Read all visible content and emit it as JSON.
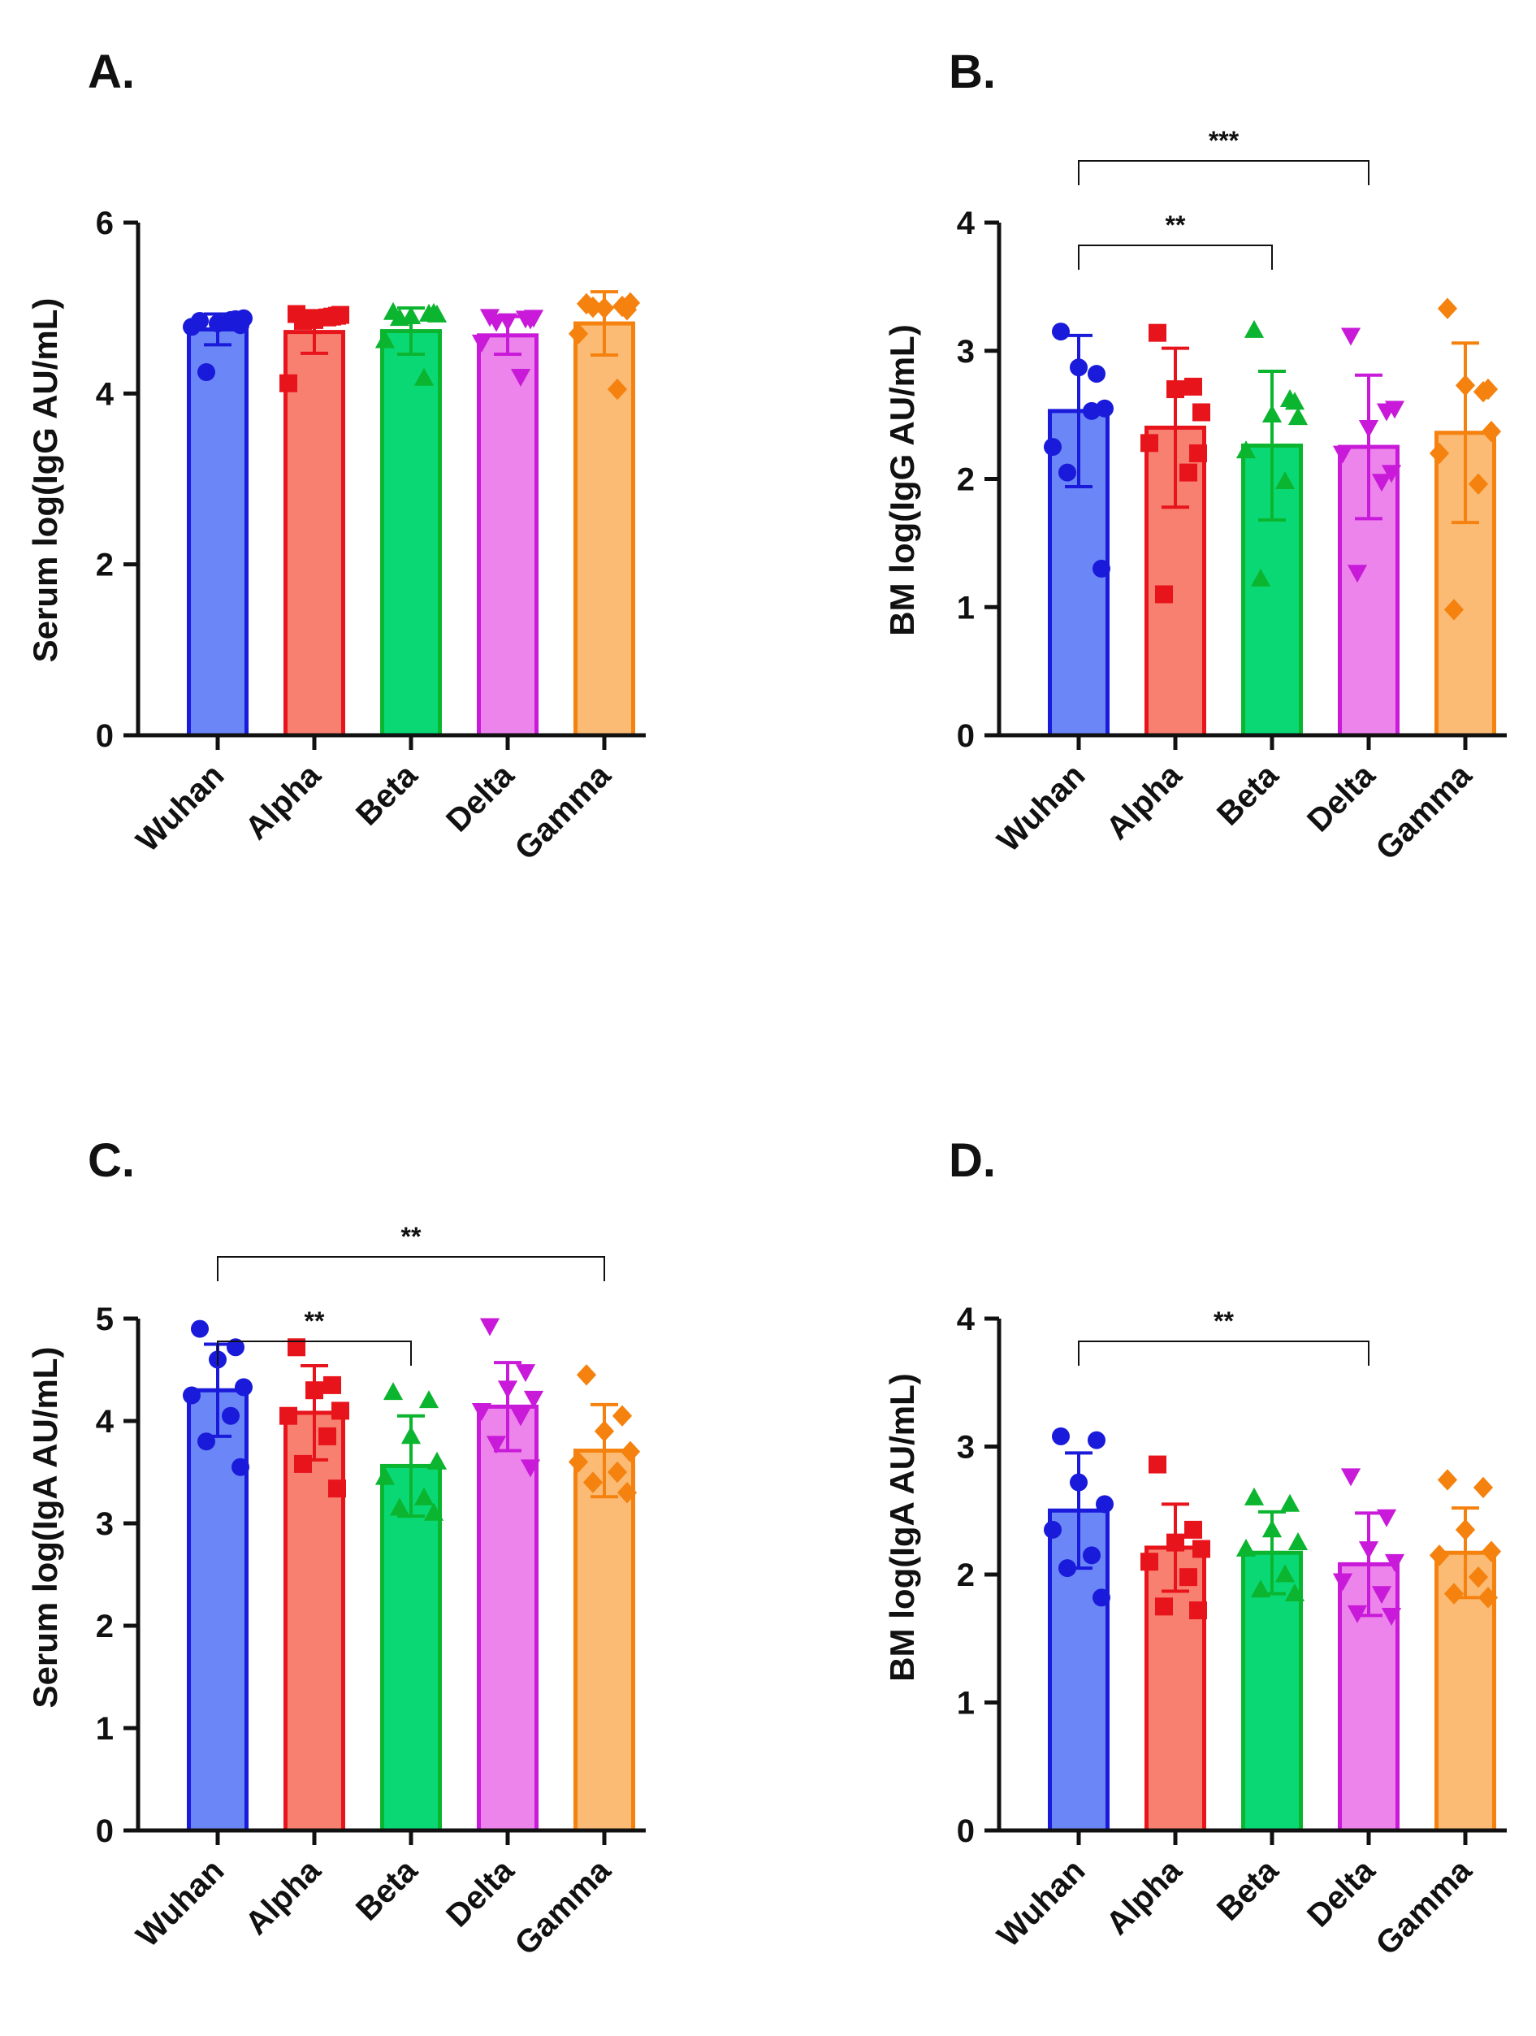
{
  "figure": {
    "title": ""
  },
  "categories": [
    "Wuhan",
    "Alpha",
    "Beta",
    "Delta",
    "Gamma"
  ],
  "colors": {
    "stroke": [
      "#1a1adb",
      "#e8141c",
      "#0bb52f",
      "#c81ad8",
      "#f5820f"
    ],
    "fill": [
      "#6a86f7",
      "#f88070",
      "#0ad874",
      "#ec84ec",
      "#fbbb74"
    ],
    "axis": "#111111"
  },
  "markers": [
    "circle",
    "square",
    "triangle-up",
    "triangle-down",
    "diamond"
  ],
  "chart_data": [
    {
      "id": "A",
      "panel_label": "A.",
      "type": "bar",
      "ylabel": "Serum log(IgG AU/mL)",
      "ylim": [
        0,
        6
      ],
      "yticks": [
        0,
        2,
        4,
        6
      ],
      "ytick_labels": [
        "0",
        "2",
        "4",
        "6"
      ],
      "categories": [
        "Wuhan",
        "Alpha",
        "Beta",
        "Delta",
        "Gamma"
      ],
      "values": [
        4.75,
        4.72,
        4.73,
        4.68,
        4.82
      ],
      "errors": [
        0.18,
        0.25,
        0.27,
        0.22,
        0.37
      ],
      "points": [
        [
          4.85,
          4.87,
          4.82,
          4.88,
          4.78,
          4.86,
          4.25,
          4.8
        ],
        [
          4.93,
          4.9,
          4.86,
          4.92,
          4.12,
          4.89,
          4.85,
          4.91
        ],
        [
          4.95,
          4.93,
          4.9,
          4.92,
          4.62,
          4.18,
          4.88,
          4.94
        ],
        [
          4.9,
          4.88,
          4.85,
          4.89,
          4.6,
          4.2,
          4.84,
          4.87
        ],
        [
          5.05,
          5.02,
          5.0,
          5.06,
          4.7,
          4.05,
          5.01,
          4.98
        ]
      ],
      "significance": []
    },
    {
      "id": "B",
      "panel_label": "B.",
      "type": "bar",
      "ylabel": "BM log(IgG AU/mL)",
      "ylim": [
        0,
        4
      ],
      "yticks": [
        0,
        1,
        2,
        3,
        4
      ],
      "ytick_labels": [
        "0",
        "1",
        "2",
        "3",
        "4"
      ],
      "categories": [
        "Wuhan",
        "Alpha",
        "Beta",
        "Delta",
        "Gamma"
      ],
      "values": [
        2.53,
        2.4,
        2.26,
        2.25,
        2.36
      ],
      "errors": [
        0.59,
        0.62,
        0.58,
        0.56,
        0.7
      ],
      "points": [
        [
          3.15,
          2.82,
          2.87,
          2.55,
          2.25,
          2.53,
          2.05,
          1.3
        ],
        [
          3.14,
          2.72,
          2.7,
          2.52,
          2.28,
          2.05,
          1.1,
          2.2
        ],
        [
          3.16,
          2.62,
          2.5,
          2.48,
          2.22,
          1.98,
          1.22,
          2.6
        ],
        [
          3.12,
          2.53,
          2.4,
          2.55,
          2.2,
          1.98,
          1.27,
          2.05
        ],
        [
          3.33,
          2.68,
          2.73,
          2.37,
          2.2,
          1.96,
          0.98,
          2.7
        ]
      ],
      "significance": [
        {
          "from": 0,
          "to": 2,
          "label": "**"
        },
        {
          "from": 0,
          "to": 3,
          "label": "***"
        }
      ]
    },
    {
      "id": "C",
      "panel_label": "C.",
      "type": "bar",
      "ylabel": "Serum log(IgA AU/mL)",
      "ylim": [
        0,
        5
      ],
      "yticks": [
        0,
        1,
        2,
        3,
        4,
        5
      ],
      "ytick_labels": [
        "0",
        "1",
        "2",
        "3",
        "4",
        "5"
      ],
      "categories": [
        "Wuhan",
        "Alpha",
        "Beta",
        "Delta",
        "Gamma"
      ],
      "values": [
        4.3,
        4.08,
        3.56,
        4.14,
        3.71
      ],
      "errors": [
        0.45,
        0.46,
        0.49,
        0.43,
        0.45
      ],
      "points": [
        [
          4.9,
          4.72,
          4.6,
          4.33,
          4.25,
          4.05,
          3.8,
          3.55
        ],
        [
          4.72,
          4.35,
          4.3,
          4.1,
          4.05,
          3.85,
          3.58,
          3.34
        ],
        [
          4.28,
          4.2,
          3.85,
          3.6,
          3.45,
          3.25,
          3.15,
          3.1
        ],
        [
          4.93,
          4.48,
          4.32,
          4.22,
          4.1,
          4.05,
          3.78,
          3.55
        ],
        [
          4.45,
          4.05,
          3.9,
          3.7,
          3.6,
          3.5,
          3.4,
          3.3
        ]
      ],
      "significance": [
        {
          "from": 0,
          "to": 2,
          "label": "**"
        },
        {
          "from": 0,
          "to": 4,
          "label": "**"
        }
      ]
    },
    {
      "id": "D",
      "panel_label": "D.",
      "type": "bar",
      "ylabel": "BM log(IgA AU/mL)",
      "ylim": [
        0,
        4
      ],
      "yticks": [
        0,
        1,
        2,
        3,
        4
      ],
      "ytick_labels": [
        "0",
        "1",
        "2",
        "3",
        "4"
      ],
      "categories": [
        "Wuhan",
        "Alpha",
        "Beta",
        "Delta",
        "Gamma"
      ],
      "values": [
        2.5,
        2.21,
        2.17,
        2.08,
        2.17
      ],
      "errors": [
        0.45,
        0.34,
        0.32,
        0.4,
        0.35
      ],
      "points": [
        [
          3.08,
          3.05,
          2.72,
          2.55,
          2.35,
          2.15,
          2.05,
          1.82
        ],
        [
          2.86,
          2.35,
          2.25,
          2.2,
          2.1,
          1.98,
          1.75,
          1.72
        ],
        [
          2.6,
          2.55,
          2.35,
          2.25,
          2.2,
          2.0,
          1.88,
          1.85
        ],
        [
          2.77,
          2.45,
          2.2,
          2.1,
          1.95,
          1.85,
          1.7,
          1.68
        ],
        [
          2.74,
          2.68,
          2.35,
          2.18,
          2.15,
          1.98,
          1.85,
          1.82
        ]
      ],
      "significance": [
        {
          "from": 0,
          "to": 3,
          "label": "**"
        }
      ]
    }
  ]
}
